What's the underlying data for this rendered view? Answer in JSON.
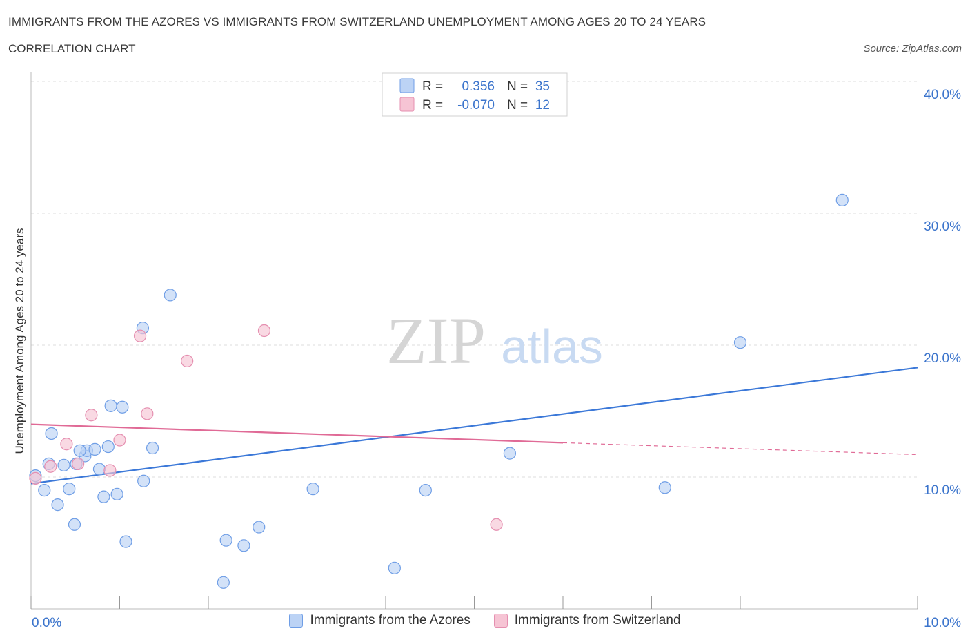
{
  "header": {
    "title": "IMMIGRANTS FROM THE AZORES VS IMMIGRANTS FROM SWITZERLAND UNEMPLOYMENT AMONG AGES 20 TO 24 YEARS",
    "subtitle": "CORRELATION CHART",
    "source": "Source: ZipAtlas.com"
  },
  "watermark": {
    "zip": "ZIP",
    "atlas": "atlas"
  },
  "colors": {
    "azores": "#3b78d8",
    "azores_fill": "#bcd3f5",
    "switzerland": "#e06a96",
    "switzerland_fill": "#f6c4d4",
    "tick_text": "#3b74cc",
    "grid": "#dddddd"
  },
  "legend": {
    "azores": {
      "r_label": "R =",
      "r_value": "0.356",
      "n_label": "N =",
      "n_value": "35"
    },
    "switzerland": {
      "r_label": "R =",
      "r_value": "-0.070",
      "n_label": "N =",
      "n_value": "12"
    }
  },
  "chart_data": {
    "type": "scatter",
    "title": "IMMIGRANTS FROM THE AZORES VS IMMIGRANTS FROM SWITZERLAND UNEMPLOYMENT AMONG AGES 20 TO 24 YEARS",
    "ylabel": "Unemployment Among Ages 20 to 24 years",
    "xlabel": "",
    "xlim": [
      0,
      10
    ],
    "ylim": [
      0,
      40
    ],
    "x_tick_labels": [
      "0.0%",
      "10.0%"
    ],
    "y_ticks": [
      10,
      20,
      30,
      40
    ],
    "y_tick_labels": [
      "10.0%",
      "20.0%",
      "30.0%",
      "40.0%"
    ],
    "grid": "horizontal dashed",
    "legend_position": "top-center",
    "series": [
      {
        "name": "Immigrants from the Azores",
        "color": "#3b78d8",
        "points": [
          [
            0.05,
            10.1
          ],
          [
            0.15,
            9.0
          ],
          [
            0.2,
            11.0
          ],
          [
            0.23,
            13.3
          ],
          [
            0.3,
            7.9
          ],
          [
            0.37,
            10.9
          ],
          [
            0.43,
            9.1
          ],
          [
            0.49,
            6.4
          ],
          [
            0.51,
            11.0
          ],
          [
            0.61,
            11.6
          ],
          [
            0.63,
            12.0
          ],
          [
            0.72,
            12.1
          ],
          [
            0.77,
            10.6
          ],
          [
            0.82,
            8.5
          ],
          [
            0.87,
            12.3
          ],
          [
            0.9,
            15.4
          ],
          [
            0.97,
            8.7
          ],
          [
            1.03,
            15.3
          ],
          [
            1.07,
            5.1
          ],
          [
            1.27,
            9.7
          ],
          [
            1.26,
            21.3
          ],
          [
            1.37,
            12.2
          ],
          [
            1.57,
            23.8
          ],
          [
            2.17,
            2.0
          ],
          [
            2.2,
            5.2
          ],
          [
            2.4,
            4.8
          ],
          [
            2.57,
            6.2
          ],
          [
            3.18,
            9.1
          ],
          [
            4.1,
            3.1
          ],
          [
            4.45,
            9.0
          ],
          [
            5.4,
            11.8
          ],
          [
            7.15,
            9.2
          ],
          [
            8.0,
            20.2
          ],
          [
            9.15,
            31.0
          ],
          [
            0.55,
            12.0
          ]
        ],
        "trendline": {
          "x": [
            0,
            10
          ],
          "y": [
            9.5,
            18.3
          ]
        }
      },
      {
        "name": "Immigrants from Switzerland",
        "color": "#e06a96",
        "points": [
          [
            0.05,
            9.9
          ],
          [
            0.22,
            10.8
          ],
          [
            0.4,
            12.5
          ],
          [
            0.53,
            11.0
          ],
          [
            0.68,
            14.7
          ],
          [
            0.89,
            10.5
          ],
          [
            1.0,
            12.8
          ],
          [
            1.23,
            20.7
          ],
          [
            1.31,
            14.8
          ],
          [
            1.76,
            18.8
          ],
          [
            2.63,
            21.1
          ],
          [
            5.25,
            6.4
          ]
        ],
        "trendline": {
          "x": [
            0,
            6.0
          ],
          "y": [
            14.0,
            12.6
          ]
        },
        "trendline_dashed": {
          "x": [
            6.0,
            10
          ],
          "y": [
            12.6,
            11.7
          ]
        }
      }
    ]
  },
  "bottom_legend": {
    "azores_label": "Immigrants from the Azores",
    "switzerland_label": "Immigrants from Switzerland"
  }
}
